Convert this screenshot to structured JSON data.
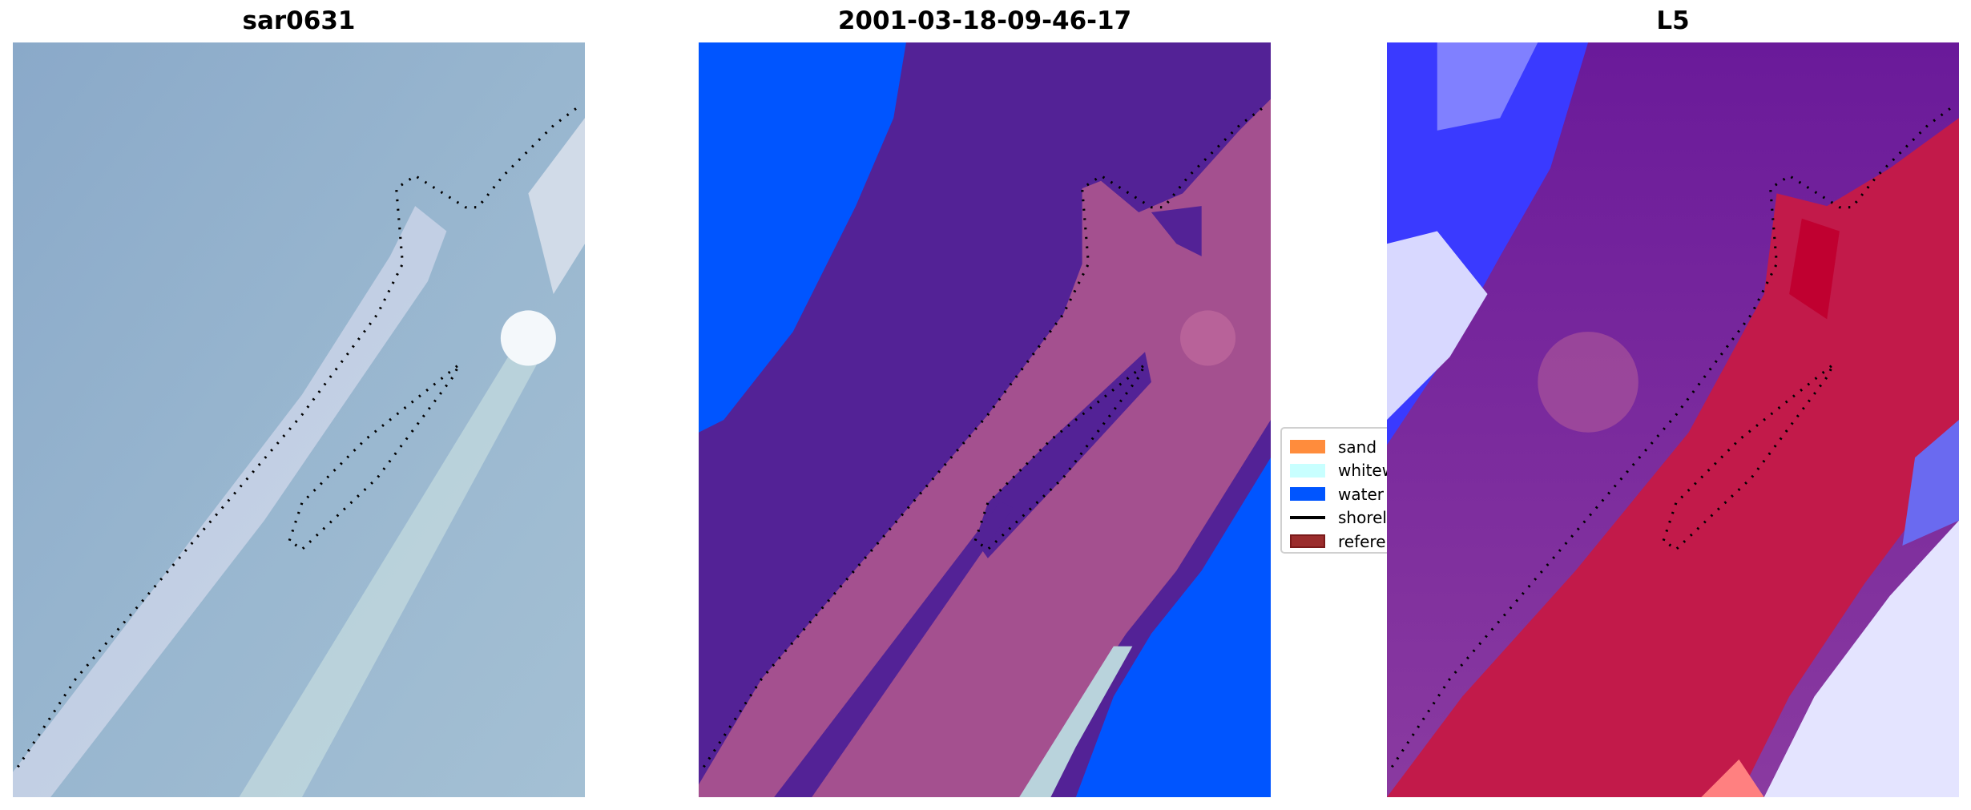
{
  "chart_data": [
    {
      "type": "image",
      "title": "sar0631",
      "shoreline_style": "dotted",
      "colormap": "RGB satellite image"
    },
    {
      "type": "image",
      "title": "2001-03-18-09-46-17",
      "shoreline_style": "dotted",
      "legend": {
        "placement": "right",
        "entries": [
          {
            "label": "sand",
            "color": "#ff8c3c"
          },
          {
            "label": "whitewater",
            "color": "#c8ffff"
          },
          {
            "label": "water",
            "color": "#0055ff"
          },
          {
            "label": "shoreline",
            "color": "#000000",
            "kind": "line"
          },
          {
            "label": "reference",
            "color": "#9b2d2d"
          }
        ]
      }
    },
    {
      "type": "heatmap",
      "title": "L5",
      "colormap": "bwr-like (blue-white-red)",
      "shoreline_style": "dotted"
    }
  ]
}
